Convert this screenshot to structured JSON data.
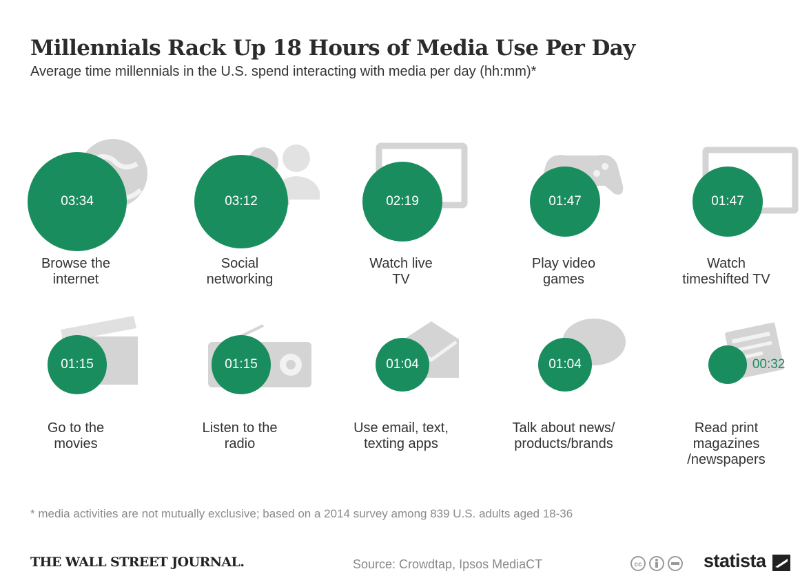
{
  "title": "Millennials Rack Up 18 Hours of Media Use Per Day",
  "subtitle": "Average time millennials in the U.S. spend interacting with media per day (hh:mm)*",
  "chart_data": {
    "type": "bubble",
    "title": "Millennials Rack Up 18 Hours of Media Use Per Day",
    "subtitle": "Average time millennials in the U.S. spend interacting with media per day (hh:mm)*",
    "unit": "hh:mm",
    "bubble_color": "#1a8d5f",
    "items": [
      {
        "label": "Browse the\ninternet",
        "display": "03:34",
        "minutes": 214,
        "icon": "globe-icon"
      },
      {
        "label": "Social\nnetworking",
        "display": "03:12",
        "minutes": 192,
        "icon": "people-icon"
      },
      {
        "label": "Watch live\nTV",
        "display": "02:19",
        "minutes": 139,
        "icon": "tv-icon"
      },
      {
        "label": "Play video\ngames",
        "display": "01:47",
        "minutes": 107,
        "icon": "gamepad-icon"
      },
      {
        "label": "Watch\ntimeshifted TV",
        "display": "01:47",
        "minutes": 107,
        "icon": "monitor-icon"
      },
      {
        "label": "Go to the\nmovies",
        "display": "01:15",
        "minutes": 75,
        "icon": "clapperboard-icon"
      },
      {
        "label": "Listen to the\nradio",
        "display": "01:15",
        "minutes": 75,
        "icon": "radio-icon"
      },
      {
        "label": "Use email, text,\ntexting apps",
        "display": "01:04",
        "minutes": 64,
        "icon": "envelope-icon"
      },
      {
        "label": "Talk about news/\nproducts/brands",
        "display": "01:04",
        "minutes": 64,
        "icon": "speech-bubbles-icon"
      },
      {
        "label": "Read print\nmagazines\n/newspapers",
        "display": "00:32",
        "minutes": 32,
        "icon": "newspaper-icon"
      }
    ]
  },
  "footnote": "* media activities are not mutually exclusive; based on a 2014 survey among 839 U.S. adults aged 18-36",
  "footer": {
    "wsj": "THE WALL STREET JOURNAL.",
    "source": "Source: Crowdtap, Ipsos MediaCT",
    "statista": "statista"
  }
}
